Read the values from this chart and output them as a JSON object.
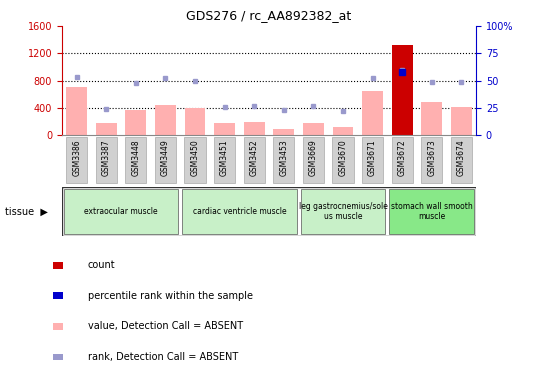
{
  "title": "GDS276 / rc_AA892382_at",
  "samples": [
    "GSM3386",
    "GSM3387",
    "GSM3448",
    "GSM3449",
    "GSM3450",
    "GSM3451",
    "GSM3452",
    "GSM3453",
    "GSM3669",
    "GSM3670",
    "GSM3671",
    "GSM3672",
    "GSM3673",
    "GSM3674"
  ],
  "bar_values": [
    700,
    175,
    370,
    450,
    400,
    175,
    195,
    90,
    185,
    120,
    650,
    1320,
    490,
    410
  ],
  "bar_colors": [
    "#ffb0b0",
    "#ffb0b0",
    "#ffb0b0",
    "#ffb0b0",
    "#ffb0b0",
    "#ffb0b0",
    "#ffb0b0",
    "#ffb0b0",
    "#ffb0b0",
    "#ffb0b0",
    "#ffb0b0",
    "#cc0000",
    "#ffb0b0",
    "#ffb0b0"
  ],
  "rank_values": [
    53,
    24,
    48,
    52,
    50,
    26,
    27,
    23,
    27,
    22,
    52,
    60,
    49,
    49
  ],
  "percentile_values": [
    null,
    null,
    null,
    null,
    null,
    null,
    null,
    null,
    null,
    null,
    null,
    58,
    null,
    null
  ],
  "ylim_left": [
    0,
    1600
  ],
  "ylim_right": [
    0,
    100
  ],
  "yticks_left": [
    0,
    400,
    800,
    1200,
    1600
  ],
  "yticks_right": [
    0,
    25,
    50,
    75,
    100
  ],
  "left_axis_color": "#cc0000",
  "right_axis_color": "#0000cc",
  "grid_yticks": [
    400,
    800,
    1200
  ],
  "tissue_groups": [
    {
      "label": "extraocular muscle",
      "start": 0,
      "end": 4,
      "color": "#c8f0c8"
    },
    {
      "label": "cardiac ventricle muscle",
      "start": 4,
      "end": 8,
      "color": "#c8f0c8"
    },
    {
      "label": "leg gastrocnemius/sole\nus muscle",
      "start": 8,
      "end": 11,
      "color": "#c8f0c8"
    },
    {
      "label": "stomach wall smooth\nmuscle",
      "start": 11,
      "end": 14,
      "color": "#88e888"
    }
  ],
  "rank_color": "#9999cc",
  "percentile_color": "#0000cc",
  "xticklabel_bg": "#d0d0d0",
  "legend_items": [
    {
      "color": "#cc0000",
      "label": "count"
    },
    {
      "color": "#0000cc",
      "label": "percentile rank within the sample"
    },
    {
      "color": "#ffb0b0",
      "label": "value, Detection Call = ABSENT"
    },
    {
      "color": "#9999cc",
      "label": "rank, Detection Call = ABSENT"
    }
  ]
}
